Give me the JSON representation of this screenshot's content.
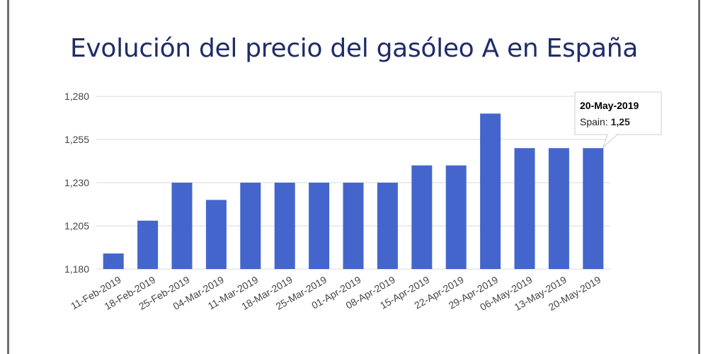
{
  "chart_data": {
    "type": "bar",
    "title": "Evolución del precio del gasóleo A en España",
    "categories": [
      "11-Feb-2019",
      "18-Feb-2019",
      "25-Feb-2019",
      "04-Mar-2019",
      "11-Mar-2019",
      "18-Mar-2019",
      "25-Mar-2019",
      "01-Apr-2019",
      "08-Apr-2019",
      "15-Apr-2019",
      "22-Apr-2019",
      "29-Apr-2019",
      "06-May-2019",
      "13-May-2019",
      "20-May-2019"
    ],
    "series": [
      {
        "name": "Spain",
        "values": [
          1.189,
          1.208,
          1.23,
          1.22,
          1.23,
          1.23,
          1.23,
          1.23,
          1.23,
          1.24,
          1.24,
          1.27,
          1.25,
          1.25,
          1.25
        ],
        "color": "#4466cc"
      }
    ],
    "yticks": [
      "1,180",
      "1,205",
      "1,230",
      "1,255",
      "1,280"
    ],
    "ylim": [
      1.18,
      1.28
    ],
    "grid": true,
    "tooltip": {
      "date": "20-May-2019",
      "label": "Spain: ",
      "value": "1,25"
    }
  },
  "colors": {
    "title": "#1f2c6b",
    "bar": "#4466cc",
    "grid": "#d9d9d9",
    "frame": "#6f6f6f"
  }
}
